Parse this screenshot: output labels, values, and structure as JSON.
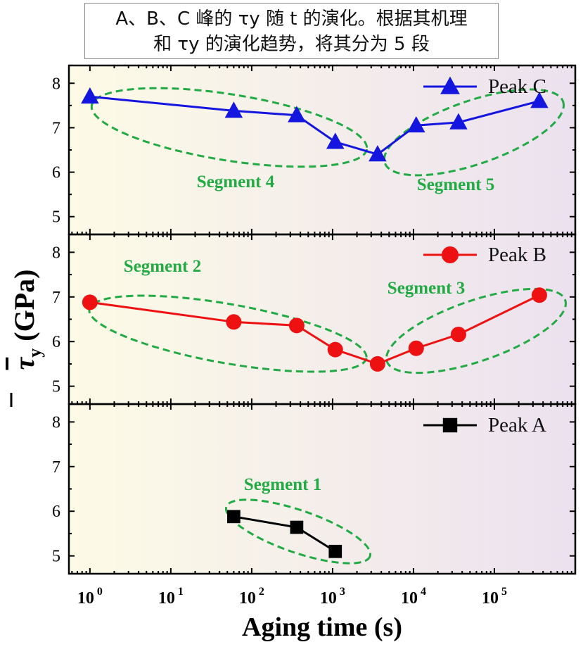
{
  "caption": {
    "line1": "A、B、C 峰的 τy 随 t 的演化。根据其机理",
    "line2": "和 τy 的演化趋势，将其分为 5 段"
  },
  "chart_data": {
    "type": "line",
    "xlabel": "Aging time (s)",
    "ylabel_main": "τ",
    "ylabel_sub": "y",
    "ylabel_unit": " (GPa)",
    "xscale": "log",
    "xlim": [
      0.55,
      1000000
    ],
    "ylim": [
      4.6,
      8.4
    ],
    "x_ticks": [
      {
        "value": 1,
        "base": "10",
        "exp": "0"
      },
      {
        "value": 10,
        "base": "10",
        "exp": "1"
      },
      {
        "value": 100,
        "base": "10",
        "exp": "2"
      },
      {
        "value": 1000,
        "base": "10",
        "exp": "3"
      },
      {
        "value": 10000,
        "base": "10",
        "exp": "4"
      },
      {
        "value": 100000,
        "base": "10",
        "exp": "5"
      }
    ],
    "y_ticks": [
      5,
      6,
      7,
      8
    ],
    "background_gradient": [
      "#fdfbe6",
      "#ece1ef"
    ],
    "panels": [
      {
        "series": {
          "name": "Peak C",
          "color": "#1515e0",
          "marker": "triangle",
          "x": [
            1,
            60,
            360,
            1080,
            3600,
            10800,
            36000,
            360000
          ],
          "y": [
            7.7,
            7.38,
            7.28,
            6.68,
            6.4,
            7.05,
            7.12,
            7.6
          ]
        },
        "segments": [
          {
            "label": "Segment 4",
            "color": "#22aa44"
          },
          {
            "label": "Segment 5",
            "color": "#22aa44"
          }
        ]
      },
      {
        "series": {
          "name": "Peak B",
          "color": "#ee1111",
          "marker": "circle",
          "x": [
            1,
            60,
            360,
            1080,
            3600,
            10800,
            36000,
            360000
          ],
          "y": [
            6.88,
            6.44,
            6.36,
            5.82,
            5.5,
            5.85,
            6.16,
            7.04
          ]
        },
        "segments": [
          {
            "label": "Segment 2",
            "color": "#22aa44"
          },
          {
            "label": "Segment 3",
            "color": "#22aa44"
          }
        ]
      },
      {
        "series": {
          "name": "Peak A",
          "color": "#000000",
          "marker": "square",
          "x": [
            60,
            360,
            1080
          ],
          "y": [
            5.88,
            5.64,
            5.1
          ]
        },
        "segments": [
          {
            "label": "Segment 1",
            "color": "#22aa44"
          }
        ]
      }
    ]
  }
}
